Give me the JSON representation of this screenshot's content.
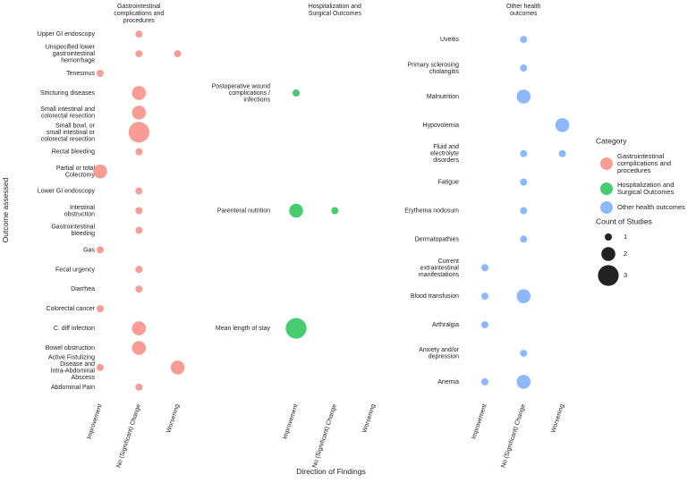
{
  "chart_data": {
    "type": "scatter",
    "x_label": "Direction of Findings",
    "y_label": "Outcome assessed",
    "x_categories": [
      "Improvement",
      "No (Significant) Change",
      "Worsening"
    ],
    "legend_title": "Category",
    "size_legend": {
      "title": "Count of Studies",
      "values": [
        1,
        2,
        3
      ]
    },
    "panels": [
      {
        "title": "Gastrointestinal\ncomplications and\nprocedures",
        "name": "Gastrointestinal\ncomplications and\nprocedures",
        "color": "#F8766D",
        "categories": [
          "Upper GI endoscopy",
          "Unspecified lower\ngastrointestinal\nhemorrhage",
          "Tenesmus",
          "Stricturing diseases",
          "Small intestinal and\ncolorectal resection",
          "Small bowl, or\nsmall intestinal or\ncolorectal resection",
          "Rectal bleeding",
          "Partial or total\nColectomy",
          "Lower GI endoscopy",
          "Intestinal\nobstruction",
          "Gastrointestinal\nbleeding",
          "Gas",
          "Fecal urgency",
          "Diarrhea",
          "Colorectal cancer",
          "C. diff infection",
          "Bowel obstruction",
          "Active Fistulizing\nDisease and\nIntra-Abdominal\nAbscess",
          "Abdominal Pain"
        ],
        "y": [
          0,
          1,
          1,
          2,
          3,
          4,
          5,
          6,
          7,
          8,
          9,
          10,
          11,
          12,
          13,
          14,
          15,
          16,
          17,
          17,
          18
        ],
        "x": [
          1,
          1,
          2,
          0,
          1,
          1,
          1,
          1,
          0,
          1,
          1,
          1,
          0,
          1,
          1,
          0,
          1,
          1,
          0,
          2,
          1
        ],
        "values": [
          1,
          1,
          1,
          1,
          2,
          2,
          3,
          1,
          2,
          1,
          1,
          1,
          1,
          1,
          1,
          1,
          2,
          2,
          1,
          2,
          1
        ]
      },
      {
        "title": "Hospitalization and\nSurgical Outcomes",
        "name": "Hospitalization and\nSurgical Outcomes",
        "color": "#00BA38",
        "categories": [
          "Postoperative wound\ncomplications /\ninfections",
          "Parenteral nutrition",
          "Mean length of stay"
        ],
        "y": [
          0,
          1,
          1,
          2
        ],
        "x": [
          0,
          0,
          1,
          0
        ],
        "values": [
          1,
          2,
          1,
          3
        ]
      },
      {
        "title": "Other health\noutcomes",
        "name": "Other health outcomes",
        "color": "#619CFF",
        "categories": [
          "Uveitis",
          "Primary sclerosing\ncholangitis",
          "Malnutrition",
          "Hypovolemia",
          "Fluid and\nelectrolyte\ndisorders",
          "Fatigue",
          "Erythema nodosum",
          "Dermatopathies",
          "Current\nextraintestinal\nmanifestations",
          "Blood transfusion",
          "Arthralgia",
          "Anxiety and/or\ndepression",
          "Anemia"
        ],
        "y": [
          0,
          1,
          2,
          3,
          4,
          4,
          5,
          6,
          7,
          8,
          9,
          9,
          10,
          11,
          12,
          12
        ],
        "x": [
          1,
          1,
          1,
          2,
          1,
          2,
          1,
          1,
          1,
          0,
          0,
          1,
          0,
          1,
          0,
          1
        ],
        "values": [
          1,
          1,
          2,
          2,
          1,
          1,
          1,
          1,
          1,
          1,
          1,
          2,
          1,
          1,
          1,
          2
        ]
      }
    ]
  }
}
